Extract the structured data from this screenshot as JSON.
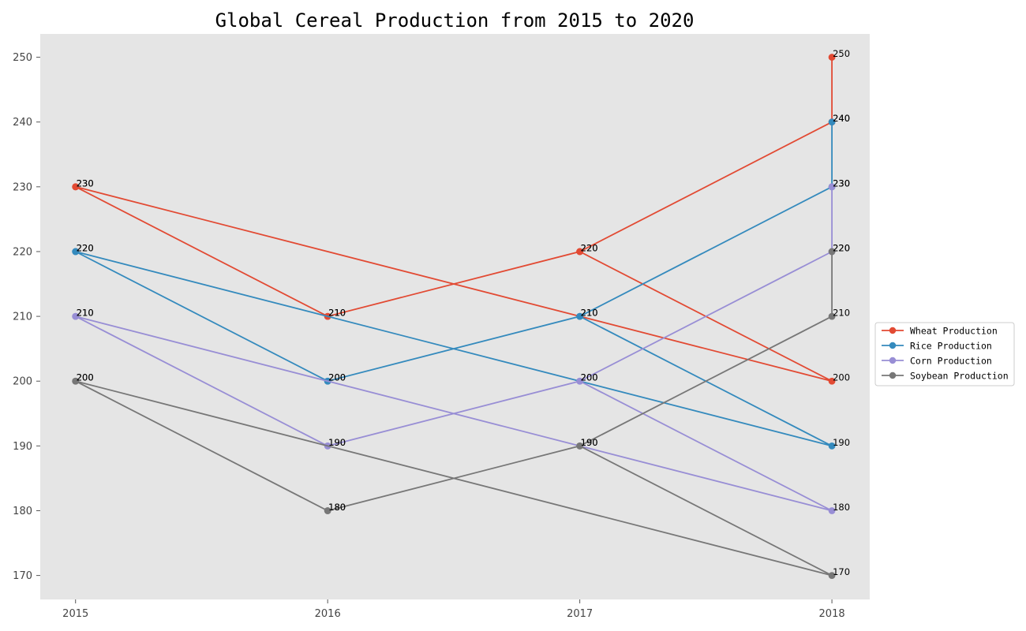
{
  "chart_data": {
    "type": "line",
    "title": "Global Cereal Production from 2015 to 2020",
    "xlabel": "",
    "ylabel": "",
    "x_ticks": [
      "2015",
      "2016",
      "2017",
      "2018"
    ],
    "y_ticks": [
      "170",
      "180",
      "190",
      "200",
      "210",
      "220",
      "230",
      "240",
      "250"
    ],
    "xlim": [
      2014.86,
      2018.15
    ],
    "ylim": [
      166.3,
      253.6
    ],
    "grid": false,
    "legend_position": "center-right",
    "x": [
      2015,
      2016,
      2017,
      2018,
      2015,
      2016,
      2017,
      2018,
      2018
    ],
    "series": [
      {
        "name": "Wheat Production",
        "color": "#E24A33",
        "values": [
          230,
          210,
          220,
          200,
          230,
          210,
          220,
          240,
          250
        ]
      },
      {
        "name": "Rice Production",
        "color": "#348ABD",
        "values": [
          220,
          200,
          210,
          190,
          220,
          200,
          210,
          230,
          240
        ]
      },
      {
        "name": "Corn Production",
        "color": "#988ED5",
        "values": [
          210,
          190,
          200,
          180,
          210,
          190,
          200,
          220,
          230
        ]
      },
      {
        "name": "Soybean Production",
        "color": "#777777",
        "values": [
          200,
          180,
          190,
          170,
          200,
          180,
          190,
          210,
          220
        ]
      }
    ]
  }
}
